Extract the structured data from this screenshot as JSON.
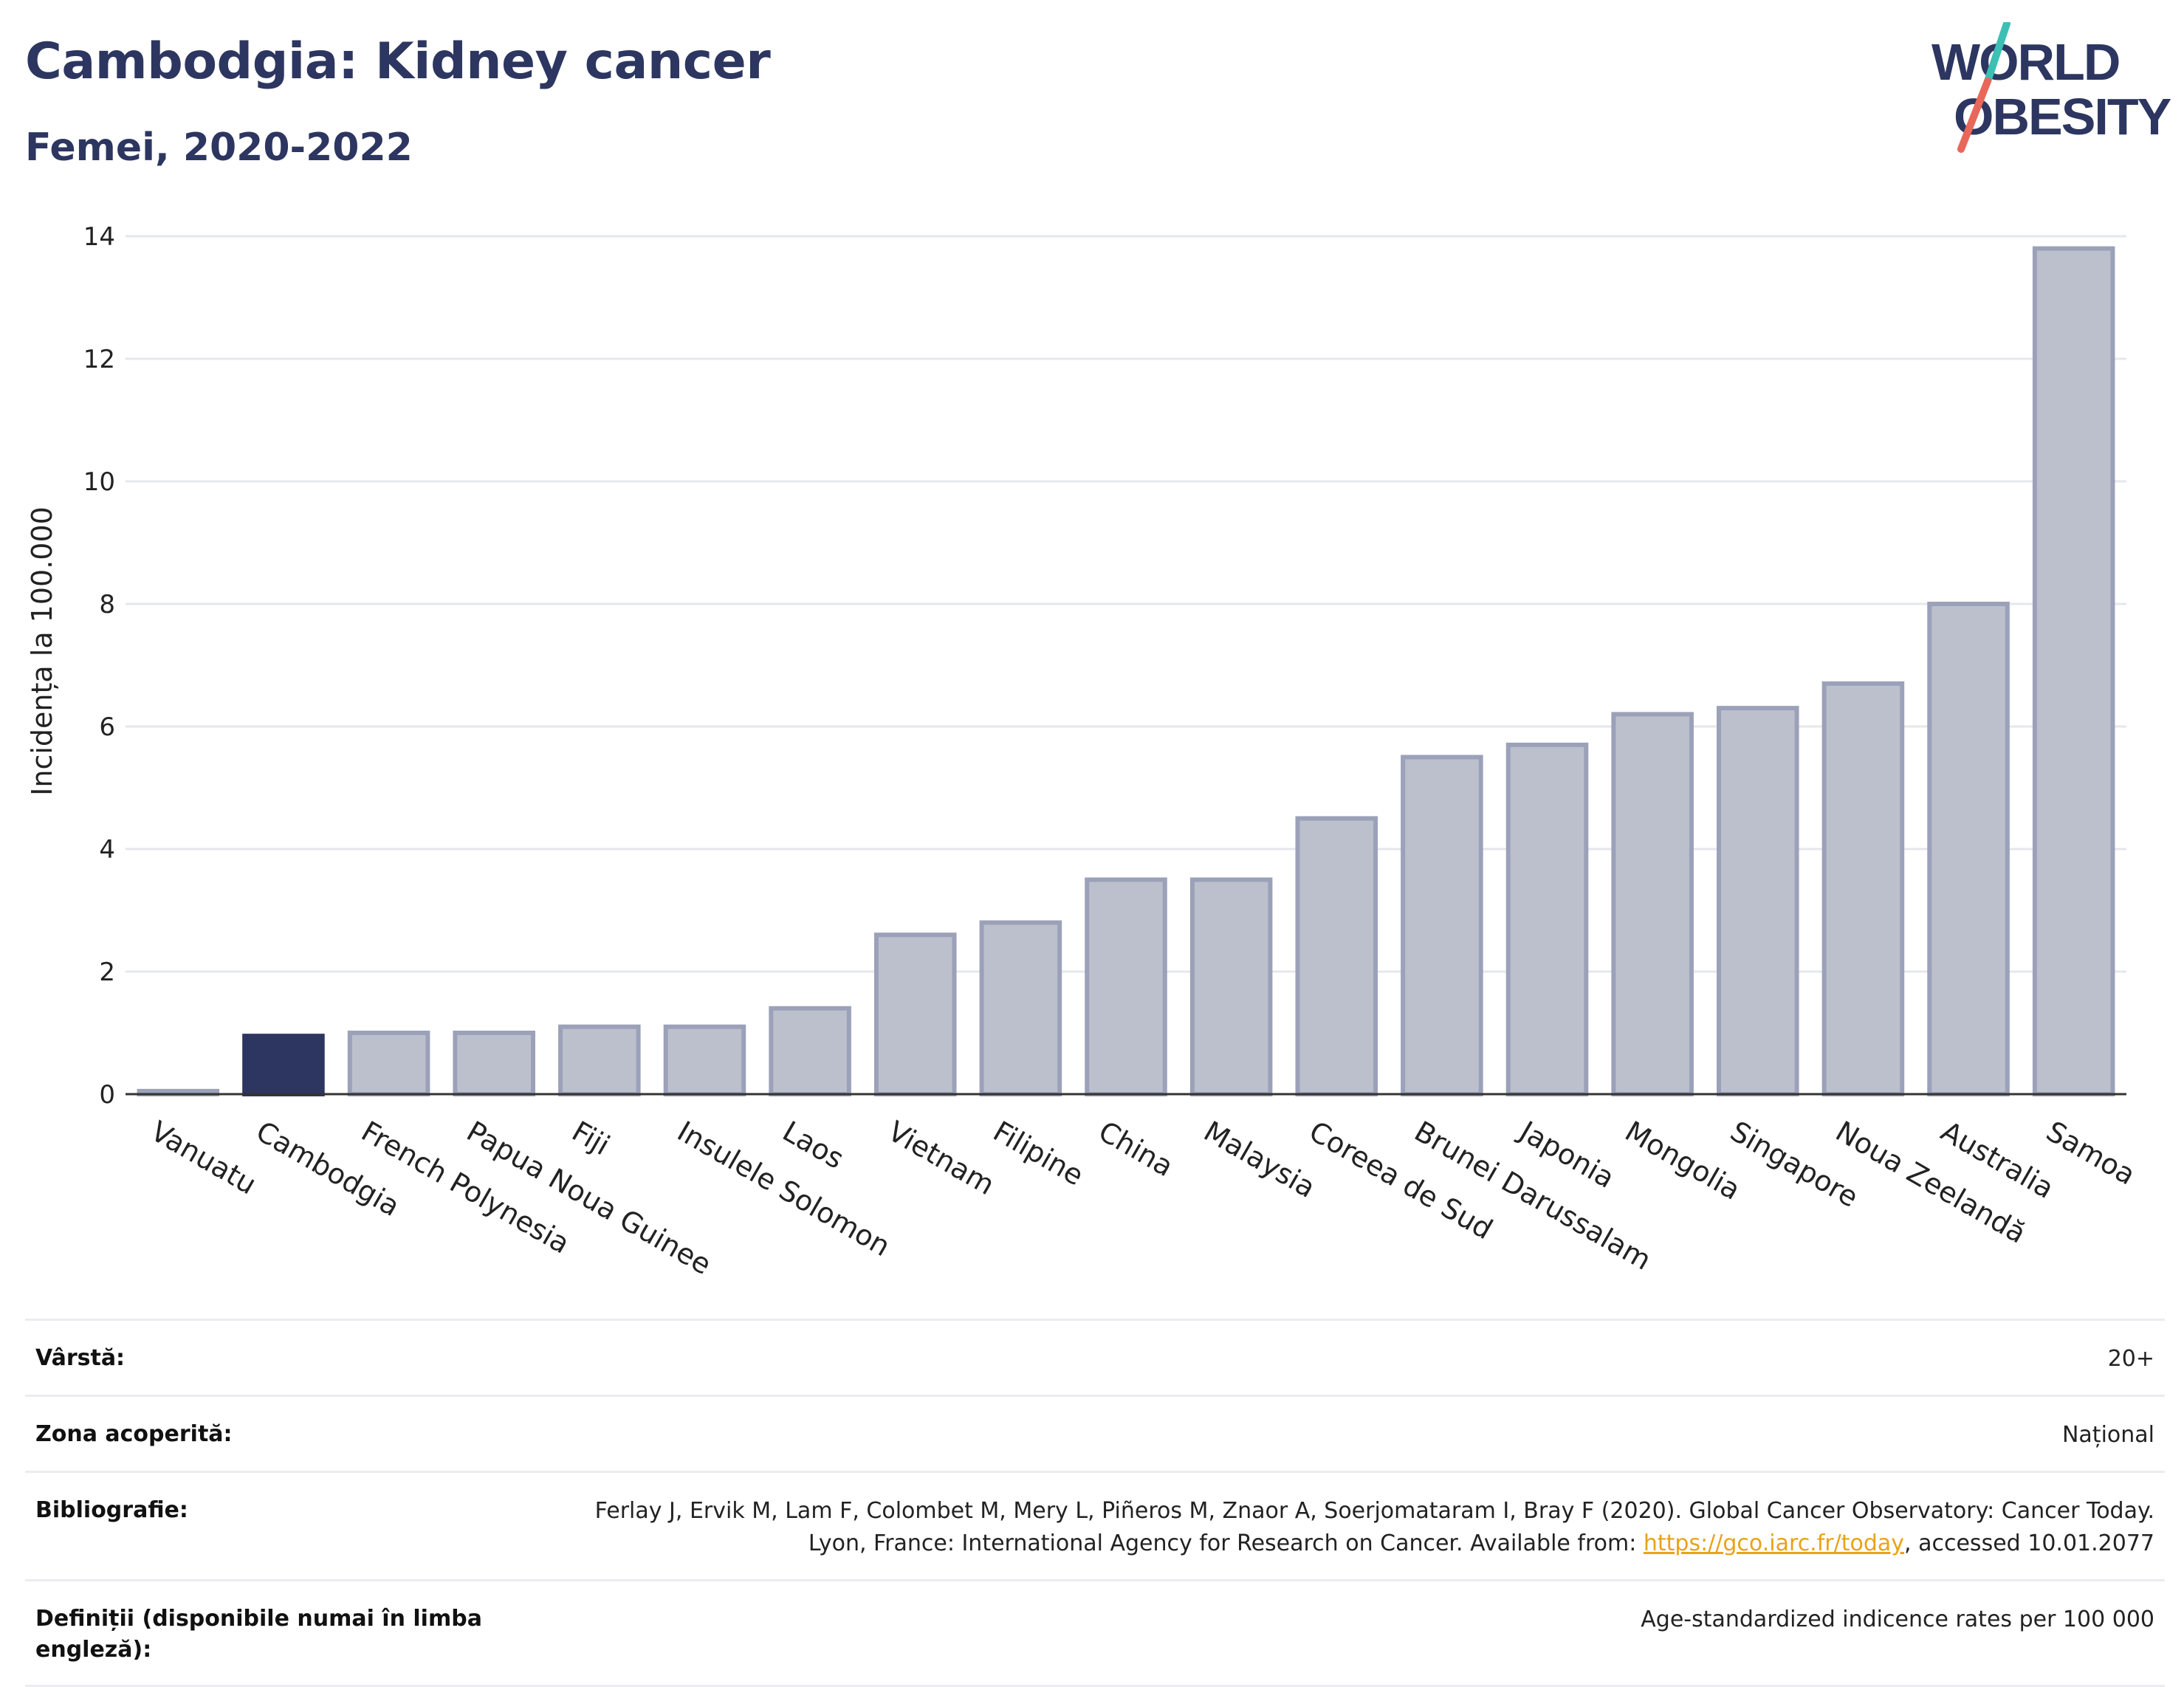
{
  "header": {
    "title": "Cambodgia: Kidney cancer",
    "subtitle": "Femei, 2020-2022"
  },
  "logo": {
    "line1": "WORLD",
    "line2": "OBESITY",
    "slash_colors": [
      "#3cbfb4",
      "#e8675a"
    ],
    "text_color": "#2c3660"
  },
  "chart_data": {
    "type": "bar",
    "ylabel": "Incidența la 100.000",
    "ylim": [
      0,
      14
    ],
    "yticks": [
      0,
      2,
      4,
      6,
      8,
      10,
      12,
      14
    ],
    "grid": true,
    "highlight": "Cambodgia",
    "colors": {
      "highlight": "#2c3660",
      "bar": "#bcc0cd",
      "bar_border": "#9ba1b8"
    },
    "categories": [
      "Vanuatu",
      "Cambodgia",
      "French Polynesia",
      "Papua Noua Guinee",
      "Fiji",
      "Insulele Solomon",
      "Laos",
      "Vietnam",
      "Filipine",
      "China",
      "Malaysia",
      "Coreea de Sud",
      "Brunei Darussalam",
      "Japonia",
      "Mongolia",
      "Singapore",
      "Noua Zeelandă",
      "Australia",
      "Samoa"
    ],
    "values": [
      0.05,
      0.95,
      1.0,
      1.0,
      1.1,
      1.1,
      1.4,
      2.6,
      2.8,
      3.5,
      3.5,
      4.5,
      5.5,
      5.7,
      6.2,
      6.3,
      6.7,
      8.0,
      13.8
    ]
  },
  "info": [
    {
      "key": "Vârstă:",
      "value": "20+"
    },
    {
      "key": "Zona acoperită:",
      "value": "Național"
    },
    {
      "key": "Bibliografie:",
      "value_pre": "Ferlay J, Ervik M, Lam F, Colombet M, Mery L, Piñeros M, Znaor A, Soerjomataram I, Bray F (2020). Global Cancer Observatory: Cancer Today. Lyon, France: International Agency for Research on Cancer. Available from: ",
      "link": "https://gco.iarc.fr/today",
      "value_post": ", accessed 10.01.2077"
    },
    {
      "key": "Definiții (disponibile numai în limba engleză):",
      "value": "Age-standardized indicence rates per 100 000"
    }
  ]
}
